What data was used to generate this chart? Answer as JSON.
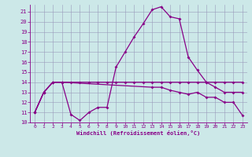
{
  "xlabel": "Windchill (Refroidissement éolien,°C)",
  "x": [
    0,
    1,
    2,
    3,
    4,
    5,
    6,
    7,
    8,
    9,
    10,
    11,
    12,
    13,
    14,
    15,
    16,
    17,
    18,
    19,
    20,
    21,
    22,
    23
  ],
  "line1_y": [
    11,
    13,
    14,
    14,
    14,
    14,
    14,
    14,
    14,
    14,
    14,
    14,
    14,
    14,
    14,
    14,
    14,
    14,
    14,
    14,
    14,
    14,
    14,
    14
  ],
  "line2_y": [
    11,
    13,
    14,
    14,
    10.8,
    10.2,
    11,
    11.5,
    11.5,
    15.5,
    17,
    18.5,
    19.8,
    21.2,
    21.5,
    20.5,
    20.3,
    16.5,
    15.2,
    14,
    13.5,
    13,
    13,
    13
  ],
  "line3_x": [
    0,
    1,
    2,
    3,
    13,
    14,
    15,
    16,
    17,
    18,
    19,
    20,
    21,
    22,
    23
  ],
  "line3_y": [
    11,
    13,
    14,
    14,
    13.5,
    13.5,
    13.2,
    13,
    12.8,
    13,
    12.5,
    12.5,
    12,
    12,
    10.7
  ],
  "bg_color": "#cce8e8",
  "line_color": "#880088",
  "grid_color": "#9999bb",
  "ylim": [
    10,
    21.7
  ],
  "xlim": [
    -0.5,
    23.5
  ],
  "yticks": [
    10,
    11,
    12,
    13,
    14,
    15,
    16,
    17,
    18,
    19,
    20,
    21
  ],
  "xticks": [
    0,
    1,
    2,
    3,
    4,
    5,
    6,
    7,
    8,
    9,
    10,
    11,
    12,
    13,
    14,
    15,
    16,
    17,
    18,
    19,
    20,
    21,
    22,
    23
  ]
}
